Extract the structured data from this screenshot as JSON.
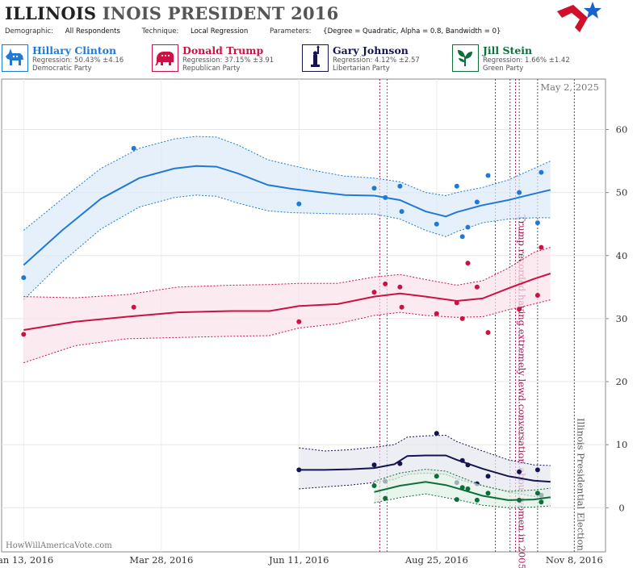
{
  "header": {
    "title_a": "ILLINOIS",
    "title_b": "INOIS PRESIDENT 2016",
    "demographic_label": "Demographic:",
    "demographic_value": "All Respondents",
    "technique_label": "Technique:",
    "technique_value": "Local Regression",
    "parameters_label": "Parameters:",
    "parameters_value": "{Degree = Quadratic, Alpha = 0.8, Bandwidth = 0}"
  },
  "candidates": [
    {
      "name": "Hillary Clinton",
      "regression": "Regression: 50.43% ±4.16",
      "party": "Democratic Party",
      "color": "#1f7ad6",
      "icon": "donkey-icon"
    },
    {
      "name": "Donald Trump",
      "regression": "Regression: 37.15% ±3.91",
      "party": "Republican Party",
      "color": "#cc1144",
      "icon": "elephant-icon"
    },
    {
      "name": "Gary Johnson",
      "regression": "Regression: 4.12% ±2.57",
      "party": "Libertarian Party",
      "color": "#141450",
      "icon": "liberty-icon"
    },
    {
      "name": "Jill Stein",
      "regression": "Regression: 1.66% ±1.42",
      "party": "Green Party",
      "color": "#0e6e3a",
      "icon": "leaf-icon"
    }
  ],
  "watermark": "HowWillAmericaVote.com",
  "chart_data": {
    "type": "scatter",
    "date_label": "May 2, 2025",
    "x_ticks": [
      {
        "date": "2016-01-13",
        "label": "Jan 13, 2016"
      },
      {
        "date": "2016-03-28",
        "label": "Mar 28, 2016"
      },
      {
        "date": "2016-06-11",
        "label": "Jun 11, 2016"
      },
      {
        "date": "2016-08-25",
        "label": "Aug 25, 2016"
      },
      {
        "date": "2016-11-08",
        "label": "Nov 8, 2016"
      }
    ],
    "xlim": [
      "2016-01-01",
      "2016-11-25"
    ],
    "ylim": [
      -7,
      68
    ],
    "y_ticks": [
      0,
      10,
      20,
      30,
      40,
      50,
      60
    ],
    "grid": true,
    "events": [
      {
        "date": "2016-10-07",
        "label": "Trump recorded having extremely lewd conversation about women in 2005",
        "color": "#aa1155"
      },
      {
        "date": "2016-11-08",
        "label": "Illinois Presidential Election",
        "color": "#555555"
      }
    ],
    "vlines": [
      {
        "date": "2016-07-25",
        "color": "#aa1155"
      },
      {
        "date": "2016-07-29",
        "color": "#1a8a8a"
      },
      {
        "date": "2016-09-26",
        "color": "#555555"
      },
      {
        "date": "2016-10-04",
        "color": "#555555"
      },
      {
        "date": "2016-10-09",
        "color": "#555555"
      },
      {
        "date": "2016-10-19",
        "color": "#555555"
      }
    ],
    "series": [
      {
        "name": "Hillary Clinton",
        "color": "#1f7ad6",
        "fill": "#dbe9f8",
        "points": [
          [
            "2016-01-13",
            36.5
          ],
          [
            "2016-03-13",
            57
          ],
          [
            "2016-06-11",
            48.2
          ],
          [
            "2016-07-22",
            50.7
          ],
          [
            "2016-07-28",
            49.2
          ],
          [
            "2016-08-05",
            51
          ],
          [
            "2016-08-06",
            47
          ],
          [
            "2016-08-25",
            45
          ],
          [
            "2016-09-05",
            51
          ],
          [
            "2016-09-08",
            43
          ],
          [
            "2016-09-11",
            44.5
          ],
          [
            "2016-09-16",
            48.5
          ],
          [
            "2016-09-22",
            52.7
          ],
          [
            "2016-10-09",
            50
          ],
          [
            "2016-10-19",
            45.2
          ],
          [
            "2016-10-21",
            53.2
          ]
        ],
        "trend": [
          [
            "2016-01-13",
            38.5
          ],
          [
            "2016-02-03",
            44
          ],
          [
            "2016-02-24",
            49
          ],
          [
            "2016-03-16",
            52.3
          ],
          [
            "2016-04-04",
            53.8
          ],
          [
            "2016-04-16",
            54.2
          ],
          [
            "2016-04-27",
            54.1
          ],
          [
            "2016-05-09",
            53
          ],
          [
            "2016-05-25",
            51.2
          ],
          [
            "2016-06-07",
            50.6
          ],
          [
            "2016-06-21",
            50.1
          ],
          [
            "2016-07-06",
            49.6
          ],
          [
            "2016-07-22",
            49.5
          ],
          [
            "2016-08-05",
            48.8
          ],
          [
            "2016-08-19",
            47
          ],
          [
            "2016-08-30",
            46.2
          ],
          [
            "2016-09-05",
            46.9
          ],
          [
            "2016-09-19",
            48
          ],
          [
            "2016-10-03",
            48.8
          ],
          [
            "2016-10-17",
            49.8
          ],
          [
            "2016-10-26",
            50.43
          ]
        ],
        "upper": [
          [
            "2016-01-13",
            44
          ],
          [
            "2016-02-03",
            49
          ],
          [
            "2016-02-24",
            53.8
          ],
          [
            "2016-03-16",
            57
          ],
          [
            "2016-04-04",
            58.5
          ],
          [
            "2016-04-16",
            58.9
          ],
          [
            "2016-04-27",
            58.8
          ],
          [
            "2016-05-09",
            57.5
          ],
          [
            "2016-05-25",
            55.2
          ],
          [
            "2016-06-07",
            54.3
          ],
          [
            "2016-06-21",
            53.4
          ],
          [
            "2016-07-06",
            52.6
          ],
          [
            "2016-07-22",
            52.3
          ],
          [
            "2016-08-05",
            51.7
          ],
          [
            "2016-08-19",
            50
          ],
          [
            "2016-08-30",
            49.5
          ],
          [
            "2016-09-05",
            50
          ],
          [
            "2016-09-19",
            50.8
          ],
          [
            "2016-10-03",
            52
          ],
          [
            "2016-10-17",
            53.8
          ],
          [
            "2016-10-26",
            55
          ]
        ],
        "lower": [
          [
            "2016-01-13",
            33
          ],
          [
            "2016-02-03",
            39
          ],
          [
            "2016-02-24",
            44.2
          ],
          [
            "2016-03-16",
            47.7
          ],
          [
            "2016-04-04",
            49.2
          ],
          [
            "2016-04-16",
            49.6
          ],
          [
            "2016-04-27",
            49.4
          ],
          [
            "2016-05-09",
            48.3
          ],
          [
            "2016-05-25",
            47.1
          ],
          [
            "2016-06-07",
            46.8
          ],
          [
            "2016-06-21",
            46.7
          ],
          [
            "2016-07-06",
            46.6
          ],
          [
            "2016-07-22",
            46.6
          ],
          [
            "2016-08-05",
            45.8
          ],
          [
            "2016-08-19",
            44
          ],
          [
            "2016-08-30",
            43
          ],
          [
            "2016-09-05",
            43.8
          ],
          [
            "2016-09-19",
            45.2
          ],
          [
            "2016-10-03",
            45.8
          ],
          [
            "2016-10-17",
            46
          ],
          [
            "2016-10-26",
            46
          ]
        ]
      },
      {
        "name": "Donald Trump",
        "color": "#cc1144",
        "fill": "#fae3ea",
        "points": [
          [
            "2016-01-13",
            27.5
          ],
          [
            "2016-03-13",
            31.8
          ],
          [
            "2016-06-11",
            29.5
          ],
          [
            "2016-07-22",
            34.2
          ],
          [
            "2016-07-28",
            35.5
          ],
          [
            "2016-08-05",
            35
          ],
          [
            "2016-08-06",
            31.8
          ],
          [
            "2016-08-25",
            30.8
          ],
          [
            "2016-09-05",
            32.5
          ],
          [
            "2016-09-08",
            30
          ],
          [
            "2016-09-11",
            38.8
          ],
          [
            "2016-09-16",
            35
          ],
          [
            "2016-09-22",
            27.8
          ],
          [
            "2016-10-09",
            31.5
          ],
          [
            "2016-10-19",
            33.7
          ],
          [
            "2016-10-21",
            41.3
          ]
        ],
        "trend": [
          [
            "2016-01-13",
            28.2
          ],
          [
            "2016-02-10",
            29.5
          ],
          [
            "2016-03-09",
            30.3
          ],
          [
            "2016-04-06",
            31
          ],
          [
            "2016-05-05",
            31.2
          ],
          [
            "2016-05-26",
            31.2
          ],
          [
            "2016-06-11",
            32
          ],
          [
            "2016-07-02",
            32.3
          ],
          [
            "2016-07-22",
            33.5
          ],
          [
            "2016-08-05",
            34
          ],
          [
            "2016-08-19",
            33.5
          ],
          [
            "2016-09-05",
            32.8
          ],
          [
            "2016-09-19",
            33.2
          ],
          [
            "2016-10-03",
            34.8
          ],
          [
            "2016-10-17",
            36.3
          ],
          [
            "2016-10-26",
            37.15
          ]
        ],
        "upper": [
          [
            "2016-01-13",
            33.5
          ],
          [
            "2016-02-10",
            33.3
          ],
          [
            "2016-03-09",
            33.8
          ],
          [
            "2016-04-06",
            35
          ],
          [
            "2016-05-05",
            35.3
          ],
          [
            "2016-05-26",
            35.4
          ],
          [
            "2016-06-11",
            35.6
          ],
          [
            "2016-07-02",
            35.6
          ],
          [
            "2016-07-22",
            36.6
          ],
          [
            "2016-08-05",
            37
          ],
          [
            "2016-08-19",
            36.2
          ],
          [
            "2016-09-05",
            35.3
          ],
          [
            "2016-09-19",
            36
          ],
          [
            "2016-10-03",
            38
          ],
          [
            "2016-10-17",
            40.5
          ],
          [
            "2016-10-26",
            41.3
          ]
        ],
        "lower": [
          [
            "2016-01-13",
            23
          ],
          [
            "2016-02-10",
            25.7
          ],
          [
            "2016-03-09",
            26.8
          ],
          [
            "2016-04-06",
            27
          ],
          [
            "2016-05-05",
            27.2
          ],
          [
            "2016-05-26",
            27.3
          ],
          [
            "2016-06-11",
            28.5
          ],
          [
            "2016-07-02",
            29.2
          ],
          [
            "2016-07-22",
            30.5
          ],
          [
            "2016-08-05",
            31
          ],
          [
            "2016-08-19",
            30.5
          ],
          [
            "2016-09-05",
            30.2
          ],
          [
            "2016-09-19",
            30.3
          ],
          [
            "2016-10-03",
            31.4
          ],
          [
            "2016-10-17",
            32.3
          ],
          [
            "2016-10-26",
            33
          ]
        ]
      },
      {
        "name": "Gary Johnson",
        "color": "#141450",
        "fill": "#e6e6ef",
        "points": [
          [
            "2016-06-11",
            6
          ],
          [
            "2016-07-22",
            6.8
          ],
          [
            "2016-07-28",
            4.2
          ],
          [
            "2016-08-05",
            7
          ],
          [
            "2016-08-25",
            11.8
          ],
          [
            "2016-09-05",
            4
          ],
          [
            "2016-09-08",
            7.5
          ],
          [
            "2016-09-11",
            6.8
          ],
          [
            "2016-09-16",
            3.8
          ],
          [
            "2016-09-22",
            5
          ],
          [
            "2016-10-09",
            5.7
          ],
          [
            "2016-10-19",
            6
          ],
          [
            "2016-10-21",
            2
          ]
        ],
        "trend": [
          [
            "2016-06-11",
            6
          ],
          [
            "2016-06-25",
            6
          ],
          [
            "2016-07-09",
            6.1
          ],
          [
            "2016-07-22",
            6.3
          ],
          [
            "2016-08-02",
            6.9
          ],
          [
            "2016-08-09",
            8.2
          ],
          [
            "2016-08-19",
            8.3
          ],
          [
            "2016-08-30",
            8.3
          ],
          [
            "2016-09-05",
            7.6
          ],
          [
            "2016-09-19",
            6.2
          ],
          [
            "2016-10-03",
            5
          ],
          [
            "2016-10-17",
            4.3
          ],
          [
            "2016-10-26",
            4.12
          ]
        ],
        "upper": [
          [
            "2016-06-11",
            9.5
          ],
          [
            "2016-06-25",
            9
          ],
          [
            "2016-07-09",
            9.2
          ],
          [
            "2016-07-22",
            9.6
          ],
          [
            "2016-08-02",
            10
          ],
          [
            "2016-08-09",
            11.2
          ],
          [
            "2016-08-19",
            11.4
          ],
          [
            "2016-08-30",
            11.5
          ],
          [
            "2016-09-05",
            10.5
          ],
          [
            "2016-09-19",
            9
          ],
          [
            "2016-10-03",
            7.6
          ],
          [
            "2016-10-17",
            6.8
          ],
          [
            "2016-10-26",
            6.7
          ]
        ],
        "lower": [
          [
            "2016-06-11",
            3
          ],
          [
            "2016-06-25",
            3.3
          ],
          [
            "2016-07-09",
            3.6
          ],
          [
            "2016-07-22",
            4
          ],
          [
            "2016-08-02",
            4.5
          ],
          [
            "2016-08-09",
            5.3
          ],
          [
            "2016-08-19",
            5.5
          ],
          [
            "2016-08-30",
            5.3
          ],
          [
            "2016-09-05",
            4.6
          ],
          [
            "2016-09-19",
            3.5
          ],
          [
            "2016-10-03",
            2.5
          ],
          [
            "2016-10-17",
            1.8
          ],
          [
            "2016-10-26",
            1.5
          ]
        ]
      },
      {
        "name": "Jill Stein",
        "color": "#0e6e3a",
        "fill": "#e0f0e6",
        "points": [
          [
            "2016-07-22",
            3.5
          ],
          [
            "2016-07-28",
            1.5
          ],
          [
            "2016-08-25",
            5
          ],
          [
            "2016-09-05",
            1.3
          ],
          [
            "2016-09-08",
            3.2
          ],
          [
            "2016-09-11",
            3
          ],
          [
            "2016-09-16",
            1.2
          ],
          [
            "2016-09-22",
            2.3
          ],
          [
            "2016-10-09",
            1.2
          ],
          [
            "2016-10-19",
            2.3
          ],
          [
            "2016-10-21",
            0.9
          ]
        ],
        "trend": [
          [
            "2016-07-22",
            2.5
          ],
          [
            "2016-08-05",
            3.5
          ],
          [
            "2016-08-19",
            4.1
          ],
          [
            "2016-08-30",
            3.6
          ],
          [
            "2016-09-05",
            3.1
          ],
          [
            "2016-09-19",
            1.9
          ],
          [
            "2016-10-03",
            1.2
          ],
          [
            "2016-10-17",
            1.3
          ],
          [
            "2016-10-26",
            1.66
          ]
        ],
        "upper": [
          [
            "2016-07-22",
            4.2
          ],
          [
            "2016-08-05",
            5.5
          ],
          [
            "2016-08-19",
            6.1
          ],
          [
            "2016-08-30",
            5.8
          ],
          [
            "2016-09-05",
            5.1
          ],
          [
            "2016-09-19",
            3.5
          ],
          [
            "2016-10-03",
            2.6
          ],
          [
            "2016-10-17",
            2.8
          ],
          [
            "2016-10-26",
            3.1
          ]
        ],
        "lower": [
          [
            "2016-07-22",
            0.8
          ],
          [
            "2016-08-05",
            1.6
          ],
          [
            "2016-08-19",
            2.2
          ],
          [
            "2016-08-30",
            1.6
          ],
          [
            "2016-09-05",
            1.3
          ],
          [
            "2016-09-19",
            0.4
          ],
          [
            "2016-10-03",
            0
          ],
          [
            "2016-10-17",
            0.1
          ],
          [
            "2016-10-26",
            0.3
          ]
        ]
      }
    ]
  }
}
